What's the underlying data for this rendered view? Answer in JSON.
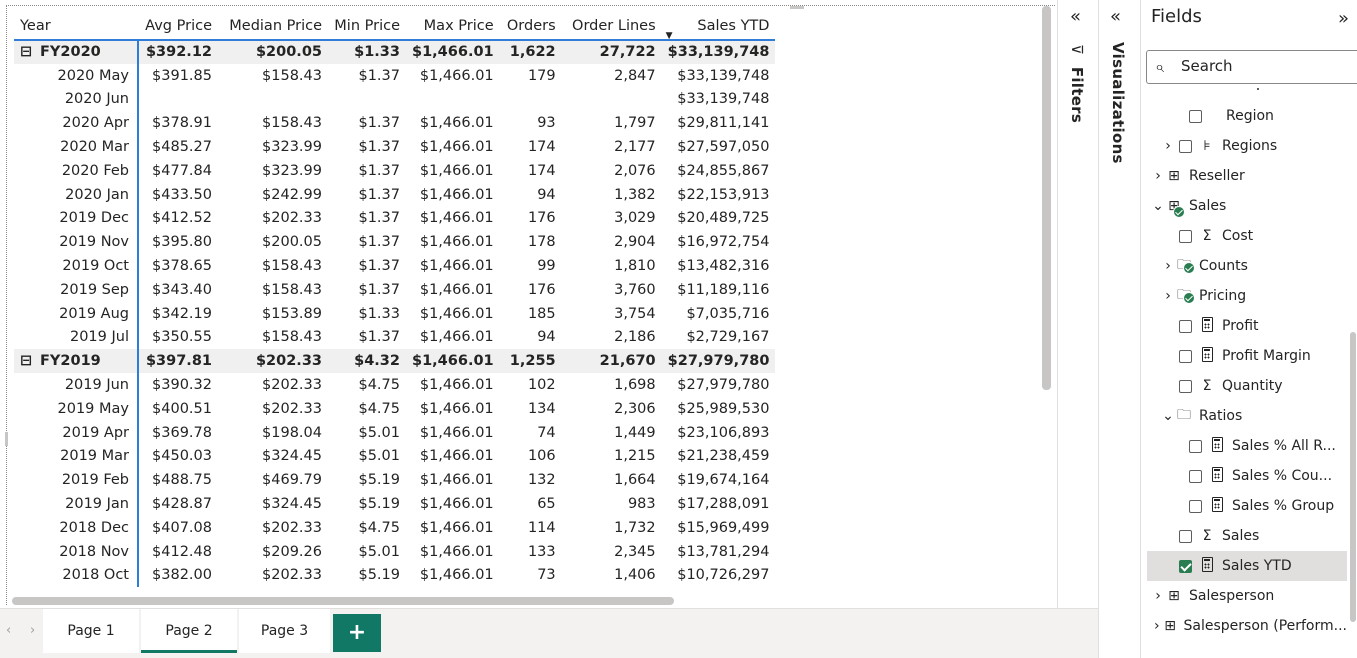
{
  "matrix": {
    "headers": [
      "Year",
      "Avg Price",
      "Median Price",
      "Min Price",
      "Max Price",
      "Orders",
      "Order Lines",
      "Sales YTD"
    ],
    "sorted_column_indicator": "▼",
    "groups": [
      {
        "expand_icon": "⊟",
        "label": "FY2020",
        "totals": [
          "$392.12",
          "$200.05",
          "$1.33",
          "$1,466.01",
          "1,622",
          "27,722",
          "$33,139,748"
        ],
        "rows": [
          {
            "label": "2020 May",
            "values": [
              "$391.85",
              "$158.43",
              "$1.37",
              "$1,466.01",
              "179",
              "2,847",
              "$33,139,748"
            ]
          },
          {
            "label": "2020 Jun",
            "values": [
              "",
              "",
              "",
              "",
              "",
              "",
              "$33,139,748"
            ]
          },
          {
            "label": "2020 Apr",
            "values": [
              "$378.91",
              "$158.43",
              "$1.37",
              "$1,466.01",
              "93",
              "1,797",
              "$29,811,141"
            ]
          },
          {
            "label": "2020 Mar",
            "values": [
              "$485.27",
              "$323.99",
              "$1.37",
              "$1,466.01",
              "174",
              "2,177",
              "$27,597,050"
            ]
          },
          {
            "label": "2020 Feb",
            "values": [
              "$477.84",
              "$323.99",
              "$1.37",
              "$1,466.01",
              "174",
              "2,076",
              "$24,855,867"
            ]
          },
          {
            "label": "2020 Jan",
            "values": [
              "$433.50",
              "$242.99",
              "$1.37",
              "$1,466.01",
              "94",
              "1,382",
              "$22,153,913"
            ]
          },
          {
            "label": "2019 Dec",
            "values": [
              "$412.52",
              "$202.33",
              "$1.37",
              "$1,466.01",
              "176",
              "3,029",
              "$20,489,725"
            ]
          },
          {
            "label": "2019 Nov",
            "values": [
              "$395.80",
              "$200.05",
              "$1.37",
              "$1,466.01",
              "178",
              "2,904",
              "$16,972,754"
            ]
          },
          {
            "label": "2019 Oct",
            "values": [
              "$378.65",
              "$158.43",
              "$1.37",
              "$1,466.01",
              "99",
              "1,810",
              "$13,482,316"
            ]
          },
          {
            "label": "2019 Sep",
            "values": [
              "$343.40",
              "$158.43",
              "$1.37",
              "$1,466.01",
              "176",
              "3,760",
              "$11,189,116"
            ]
          },
          {
            "label": "2019 Aug",
            "values": [
              "$342.19",
              "$153.89",
              "$1.33",
              "$1,466.01",
              "185",
              "3,754",
              "$7,035,716"
            ]
          },
          {
            "label": "2019 Jul",
            "values": [
              "$350.55",
              "$158.43",
              "$1.37",
              "$1,466.01",
              "94",
              "2,186",
              "$2,729,167"
            ]
          }
        ]
      },
      {
        "expand_icon": "⊟",
        "label": "FY2019",
        "totals": [
          "$397.81",
          "$202.33",
          "$4.32",
          "$1,466.01",
          "1,255",
          "21,670",
          "$27,979,780"
        ],
        "rows": [
          {
            "label": "2019 Jun",
            "values": [
              "$390.32",
              "$202.33",
              "$4.75",
              "$1,466.01",
              "102",
              "1,698",
              "$27,979,780"
            ]
          },
          {
            "label": "2019 May",
            "values": [
              "$400.51",
              "$202.33",
              "$4.75",
              "$1,466.01",
              "134",
              "2,306",
              "$25,989,530"
            ]
          },
          {
            "label": "2019 Apr",
            "values": [
              "$369.78",
              "$198.04",
              "$5.01",
              "$1,466.01",
              "74",
              "1,449",
              "$23,106,893"
            ]
          },
          {
            "label": "2019 Mar",
            "values": [
              "$450.03",
              "$324.45",
              "$5.01",
              "$1,466.01",
              "106",
              "1,215",
              "$21,238,459"
            ]
          },
          {
            "label": "2019 Feb",
            "values": [
              "$488.75",
              "$469.79",
              "$5.19",
              "$1,466.01",
              "132",
              "1,664",
              "$19,674,164"
            ]
          },
          {
            "label": "2019 Jan",
            "values": [
              "$428.87",
              "$324.45",
              "$5.19",
              "$1,466.01",
              "65",
              "983",
              "$17,288,091"
            ]
          },
          {
            "label": "2018 Dec",
            "values": [
              "$407.08",
              "$202.33",
              "$4.75",
              "$1,466.01",
              "114",
              "1,732",
              "$15,969,499"
            ]
          },
          {
            "label": "2018 Nov",
            "values": [
              "$412.48",
              "$209.26",
              "$5.01",
              "$1,466.01",
              "133",
              "2,345",
              "$13,781,294"
            ]
          },
          {
            "label": "2018 Oct",
            "values": [
              "$382.00",
              "$202.33",
              "$5.19",
              "$1,466.01",
              "73",
              "1,406",
              "$10,726,297"
            ]
          }
        ]
      }
    ]
  },
  "filters_pane": {
    "collapse_icon": "«",
    "funnel_icon": "⊽",
    "label": "Filters"
  },
  "visualizations_pane": {
    "collapse_icon": "«",
    "label": "Visualizations"
  },
  "fields_pane": {
    "title": "Fields",
    "expand_icon": "»",
    "search": {
      "placeholder": "Search",
      "icon": "⌕"
    },
    "items": [
      {
        "label": "Region",
        "indent": 2,
        "chevron": "",
        "checkbox": "unchecked",
        "icon": "none"
      },
      {
        "label": "Regions",
        "indent": 1,
        "chevron": "›",
        "checkbox": "unchecked",
        "icon": "hierarchy"
      },
      {
        "label": "Reseller",
        "indent": 0,
        "chevron": "›",
        "checkbox": "none",
        "icon": "table"
      },
      {
        "label": "Sales",
        "indent": 0,
        "chevron": "⌄",
        "checkbox": "none",
        "icon": "table",
        "badge": true
      },
      {
        "label": "Cost",
        "indent": 1,
        "chevron": "",
        "checkbox": "unchecked",
        "icon": "sigma"
      },
      {
        "label": "Counts",
        "indent": 1,
        "chevron": "›",
        "checkbox": "none",
        "icon": "folder",
        "badge": true
      },
      {
        "label": "Pricing",
        "indent": 1,
        "chevron": "›",
        "checkbox": "none",
        "icon": "folder",
        "badge": true
      },
      {
        "label": "Profit",
        "indent": 1,
        "chevron": "",
        "checkbox": "unchecked",
        "icon": "calc"
      },
      {
        "label": "Profit Margin",
        "indent": 1,
        "chevron": "",
        "checkbox": "unchecked",
        "icon": "calc"
      },
      {
        "label": "Quantity",
        "indent": 1,
        "chevron": "",
        "checkbox": "unchecked",
        "icon": "sigma"
      },
      {
        "label": "Ratios",
        "indent": 1,
        "chevron": "⌄",
        "checkbox": "none",
        "icon": "folder"
      },
      {
        "label": "Sales % All R...",
        "indent": 2,
        "chevron": "",
        "checkbox": "unchecked",
        "icon": "calc"
      },
      {
        "label": "Sales % Cou...",
        "indent": 2,
        "chevron": "",
        "checkbox": "unchecked",
        "icon": "calc"
      },
      {
        "label": "Sales % Group",
        "indent": 2,
        "chevron": "",
        "checkbox": "unchecked",
        "icon": "calc"
      },
      {
        "label": "Sales",
        "indent": 1,
        "chevron": "",
        "checkbox": "unchecked",
        "icon": "sigma"
      },
      {
        "label": "Sales YTD",
        "indent": 1,
        "chevron": "",
        "checkbox": "checked",
        "icon": "calc",
        "selected": true
      },
      {
        "label": "Salesperson",
        "indent": 0,
        "chevron": "›",
        "checkbox": "none",
        "icon": "table-multi"
      },
      {
        "label": "Salesperson (Perform...",
        "indent": 0,
        "chevron": "›",
        "checkbox": "none",
        "icon": "table"
      }
    ]
  },
  "page_tabs": {
    "prev_icon": "‹",
    "next_icon": "›",
    "tabs": [
      {
        "label": "Page 1",
        "active": false
      },
      {
        "label": "Page 2",
        "active": true
      },
      {
        "label": "Page 3",
        "active": false
      }
    ],
    "add_label": "+"
  },
  "colors": {
    "accent": "#117865",
    "header_underline": "#2f7dd6",
    "check_green": "#2a7d51"
  }
}
